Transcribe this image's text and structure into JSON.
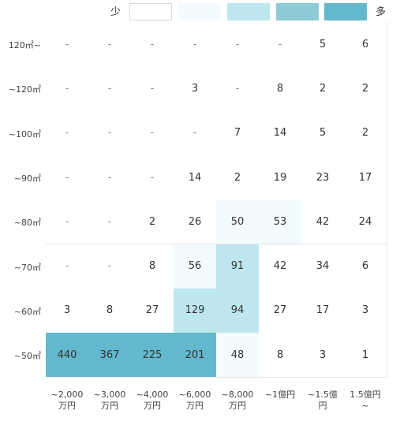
{
  "legend": {
    "low_label": "少",
    "high_label": "多",
    "colors": [
      "#ffffff",
      "#f2fbfd",
      "#bde6ef",
      "#8ecbd6",
      "#62b8cc"
    ]
  },
  "chart_data": {
    "type": "heatmap",
    "x_categories": [
      "~2,000\n万円",
      "~3,000\n万円",
      "~4,000\n万円",
      "~6,000\n万円",
      "~8,000\n万円",
      "~1億円",
      "~1.5億\n円",
      "1.5億円\n~"
    ],
    "y_categories": [
      "120㎡~",
      "~120㎡",
      "~100㎡",
      "~90㎡",
      "~80㎡",
      "~70㎡",
      "~60㎡",
      "~50㎡"
    ],
    "cells": [
      [
        "-",
        "-",
        "-",
        "-",
        "-",
        "-",
        "5",
        "6"
      ],
      [
        "-",
        "-",
        "-",
        "3",
        "-",
        "8",
        "2",
        "2"
      ],
      [
        "-",
        "-",
        "-",
        "-",
        "7",
        "14",
        "5",
        "2"
      ],
      [
        "-",
        "-",
        "-",
        "14",
        "2",
        "19",
        "23",
        "17"
      ],
      [
        "-",
        "-",
        "2",
        "26",
        "50",
        "53",
        "42",
        "24"
      ],
      [
        "-",
        "-",
        "8",
        "56",
        "91",
        "42",
        "34",
        "6"
      ],
      [
        "3",
        "8",
        "27",
        "129",
        "94",
        "27",
        "17",
        "3"
      ],
      [
        "440",
        "367",
        "225",
        "201",
        "48",
        "8",
        "3",
        "1"
      ]
    ],
    "color_levels": [
      [
        0,
        0,
        0,
        0,
        0,
        0,
        0,
        0
      ],
      [
        0,
        0,
        0,
        0,
        0,
        0,
        0,
        0
      ],
      [
        0,
        0,
        0,
        0,
        0,
        0,
        0,
        0
      ],
      [
        0,
        0,
        0,
        0,
        0,
        0,
        0,
        0
      ],
      [
        0,
        0,
        0,
        0,
        1,
        1,
        0,
        0
      ],
      [
        0,
        0,
        0,
        1,
        2,
        0,
        0,
        0
      ],
      [
        0,
        0,
        0,
        2,
        2,
        0,
        0,
        0
      ],
      [
        4,
        4,
        4,
        4,
        1,
        0,
        0,
        0
      ]
    ]
  }
}
